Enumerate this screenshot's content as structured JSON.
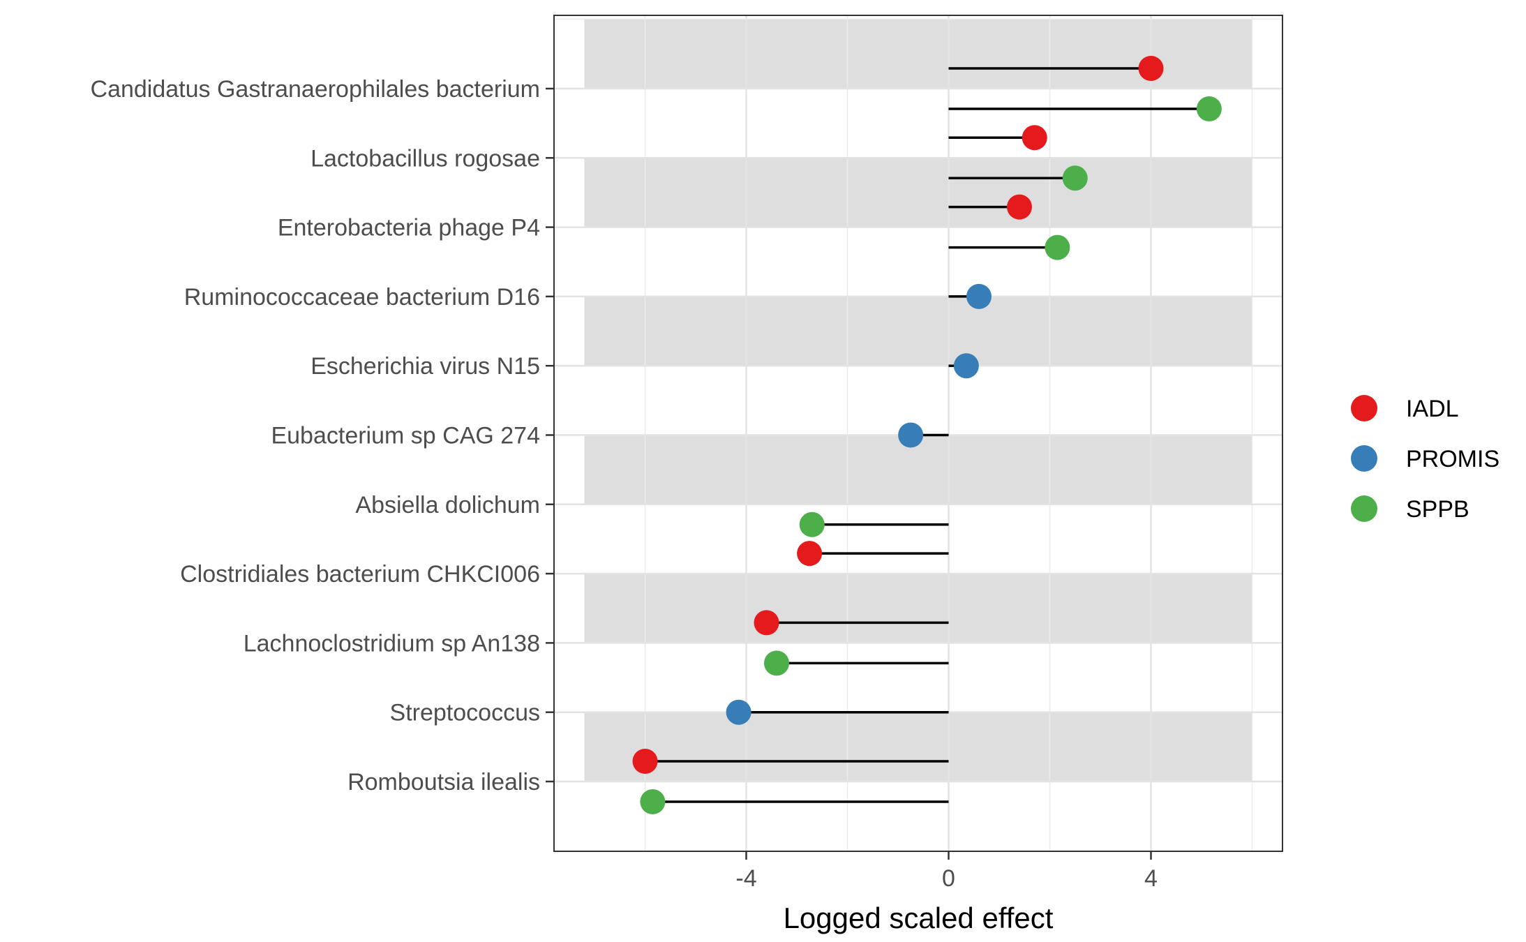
{
  "chart_data": {
    "type": "lollipop",
    "title": "",
    "xlabel": "Logged scaled effect",
    "ylabel": "",
    "xlim": [
      -7.8,
      6.6
    ],
    "x_ticks": [
      -4,
      0,
      4
    ],
    "x_tick_labels": [
      "-4",
      "0",
      "4"
    ],
    "grid": true,
    "legend_position": "right",
    "categories": [
      "Candidatus Gastranaerophilales bacterium",
      "Lactobacillus rogosae",
      "Enterobacteria phage P4",
      "Ruminococcaceae bacterium D16",
      "Escherichia virus N15",
      "Eubacterium sp CAG 274",
      "Absiella dolichum",
      "Clostridiales bacterium CHKCI006",
      "Lachnoclostridium sp An138",
      "Streptococcus",
      "Romboutsia ilealis"
    ],
    "shaded_rows": [
      0,
      2,
      4,
      6,
      8,
      10
    ],
    "series": [
      {
        "name": "IADL",
        "color": "#e41a1c",
        "values": [
          4.0,
          1.7,
          1.4,
          null,
          null,
          null,
          null,
          -2.75,
          -3.6,
          null,
          -6.0
        ]
      },
      {
        "name": "PROMIS",
        "color": "#377eb8",
        "values": [
          null,
          null,
          null,
          0.6,
          0.35,
          -0.75,
          null,
          null,
          null,
          -4.15,
          null
        ]
      },
      {
        "name": "SPPB",
        "color": "#4daf4a",
        "values": [
          5.15,
          2.5,
          2.15,
          null,
          null,
          null,
          -2.7,
          null,
          -3.4,
          null,
          -5.85
        ]
      }
    ]
  }
}
